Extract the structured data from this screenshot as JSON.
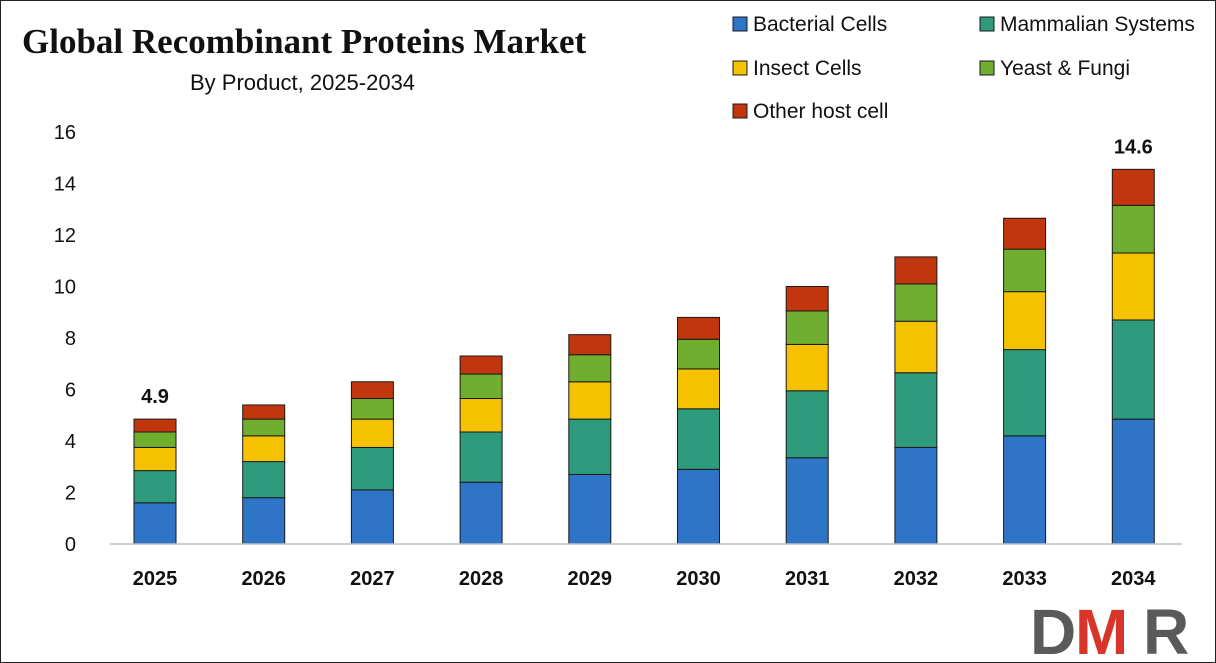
{
  "chart_data": {
    "type": "bar",
    "stacked": true,
    "title": "Global Recombinant Proteins Market",
    "subtitle": "By Product, 2025-2034",
    "xlabel": "",
    "ylabel": "",
    "categories": [
      "2025",
      "2026",
      "2027",
      "2028",
      "2029",
      "2030",
      "2031",
      "2032",
      "2033",
      "2034"
    ],
    "ylim": [
      0,
      16
    ],
    "yticks": [
      0,
      2,
      4,
      6,
      8,
      10,
      12,
      14,
      16
    ],
    "grid": false,
    "legend_position": "top-right",
    "series": [
      {
        "name": "Bacterial Cells",
        "color": "#2E75C8",
        "values": [
          1.6,
          1.8,
          2.1,
          2.4,
          2.7,
          2.9,
          3.35,
          3.75,
          4.2,
          4.85
        ]
      },
      {
        "name": "Mammalian Systems",
        "color": "#2E9C7C",
        "values": [
          1.25,
          1.4,
          1.65,
          1.95,
          2.15,
          2.35,
          2.6,
          2.9,
          3.35,
          3.85
        ]
      },
      {
        "name": "Insect Cells",
        "color": "#F6C200",
        "values": [
          0.9,
          1.0,
          1.1,
          1.3,
          1.45,
          1.55,
          1.8,
          2.0,
          2.25,
          2.6
        ]
      },
      {
        "name": "Yeast & Fungi",
        "color": "#6FAE2F",
        "values": [
          0.6,
          0.65,
          0.8,
          0.95,
          1.05,
          1.15,
          1.3,
          1.45,
          1.65,
          1.85
        ]
      },
      {
        "name": "Other host cell",
        "color": "#C2360E",
        "values": [
          0.5,
          0.55,
          0.65,
          0.7,
          0.78,
          0.85,
          0.95,
          1.05,
          1.2,
          1.4
        ]
      }
    ],
    "data_labels": [
      {
        "category": "2025",
        "text": "4.9"
      },
      {
        "category": "2034",
        "text": "14.6"
      }
    ]
  },
  "logo": {
    "text_d": "D",
    "text_m": "M",
    "text_r": "R",
    "color_dark": "#5a5a5a",
    "color_accent": "#d8352a"
  }
}
